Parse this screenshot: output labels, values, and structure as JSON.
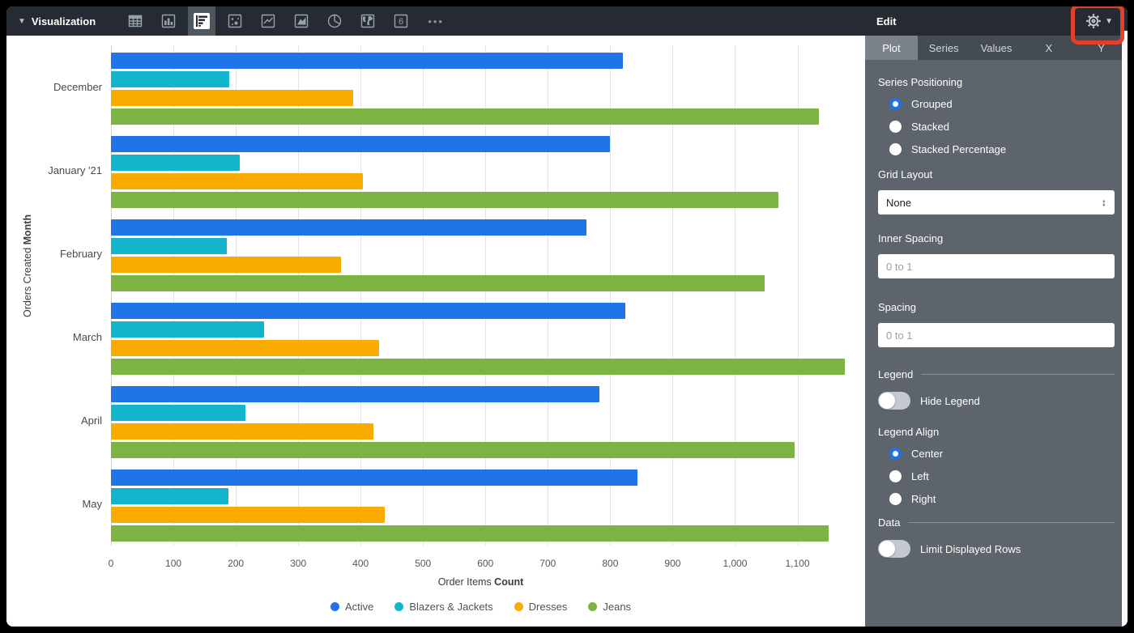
{
  "toolbar": {
    "title": "Visualization",
    "icons": [
      "table-icon",
      "column-chart-icon",
      "bar-chart-icon",
      "scatter-icon",
      "line-chart-icon",
      "area-chart-icon",
      "pie-chart-icon",
      "map-icon",
      "single-value-icon",
      "more-icon"
    ],
    "selected_icon": "bar-chart-icon",
    "more_label": "•••"
  },
  "panel": {
    "title": "Edit",
    "tabs": [
      {
        "label": "Plot",
        "selected": true
      },
      {
        "label": "Series",
        "selected": false
      },
      {
        "label": "Values",
        "selected": false
      },
      {
        "label": "X",
        "selected": false
      },
      {
        "label": "Y",
        "selected": false
      }
    ],
    "series_positioning": {
      "label": "Series Positioning",
      "options": [
        {
          "label": "Grouped",
          "selected": true
        },
        {
          "label": "Stacked",
          "selected": false
        },
        {
          "label": "Stacked Percentage",
          "selected": false
        }
      ]
    },
    "grid_layout": {
      "label": "Grid Layout",
      "value": "None",
      "updown_glyph": "↕"
    },
    "inner_spacing": {
      "label": "Inner Spacing",
      "placeholder": "0 to 1",
      "value": ""
    },
    "spacing": {
      "label": "Spacing",
      "placeholder": "0 to 1",
      "value": ""
    },
    "legend_section": {
      "header": "Legend",
      "hide_legend": {
        "label": "Hide Legend",
        "on": false
      },
      "align_label": "Legend Align",
      "align_options": [
        {
          "label": "Center",
          "selected": true
        },
        {
          "label": "Left",
          "selected": false
        },
        {
          "label": "Right",
          "selected": false
        }
      ]
    },
    "data_section": {
      "header": "Data",
      "limit_rows": {
        "label": "Limit Displayed Rows",
        "on": false
      }
    }
  },
  "chart_data": {
    "type": "bar",
    "orientation": "horizontal",
    "title": "",
    "categories": [
      "December",
      "January '21",
      "February",
      "March",
      "April",
      "May"
    ],
    "series": [
      {
        "name": "Active",
        "color": "#1f74e8",
        "values": [
          820,
          800,
          762,
          824,
          782,
          843
        ]
      },
      {
        "name": "Blazers & Jackets",
        "color": "#12b5cb",
        "values": [
          190,
          206,
          186,
          245,
          215,
          188
        ]
      },
      {
        "name": "Dresses",
        "color": "#faab00",
        "values": [
          388,
          404,
          369,
          429,
          421,
          439
        ]
      },
      {
        "name": "Jeans",
        "color": "#7cb342",
        "values": [
          1135,
          1069,
          1048,
          1176,
          1095,
          1150
        ]
      }
    ],
    "xlabel_prefix": "Order Items ",
    "xlabel_bold": "Count",
    "ylabel_prefix": "Orders Created ",
    "ylabel_bold": "Month",
    "xlim": [
      0,
      1185
    ],
    "xticks": [
      {
        "value": 0,
        "label": "0"
      },
      {
        "value": 100,
        "label": "100"
      },
      {
        "value": 200,
        "label": "200"
      },
      {
        "value": 300,
        "label": "300"
      },
      {
        "value": 400,
        "label": "400"
      },
      {
        "value": 500,
        "label": "500"
      },
      {
        "value": 600,
        "label": "600"
      },
      {
        "value": 700,
        "label": "700"
      },
      {
        "value": 800,
        "label": "800"
      },
      {
        "value": 900,
        "label": "900"
      },
      {
        "value": 1000,
        "label": "1,000"
      },
      {
        "value": 1100,
        "label": "1,100"
      }
    ],
    "grid": true,
    "legend_position": "bottom-center"
  },
  "colors": {
    "toolbar_bg": "#262b33",
    "panel_bg": "#5e646b",
    "selected_tab_bg": "#7b828a",
    "accent_blue": "#1a73e8",
    "highlight_red": "#e2402c"
  }
}
